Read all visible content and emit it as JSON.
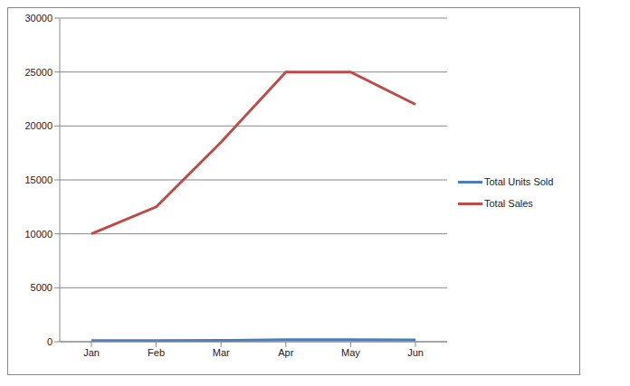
{
  "chart_data": {
    "type": "line",
    "categories": [
      "Jan",
      "Feb",
      "Mar",
      "Apr",
      "May",
      "Jun"
    ],
    "series": [
      {
        "name": "Total Units Sold",
        "color": "#4a7ebb",
        "values": [
          100,
          110,
          120,
          180,
          180,
          170
        ]
      },
      {
        "name": "Total Sales",
        "color": "#be4b48",
        "values": [
          10000,
          12500,
          18500,
          25000,
          25000,
          22000
        ]
      }
    ],
    "ylim": [
      0,
      30000
    ],
    "yticks": [
      0,
      5000,
      10000,
      15000,
      20000,
      25000,
      30000
    ],
    "grid": true,
    "legend": "right"
  }
}
